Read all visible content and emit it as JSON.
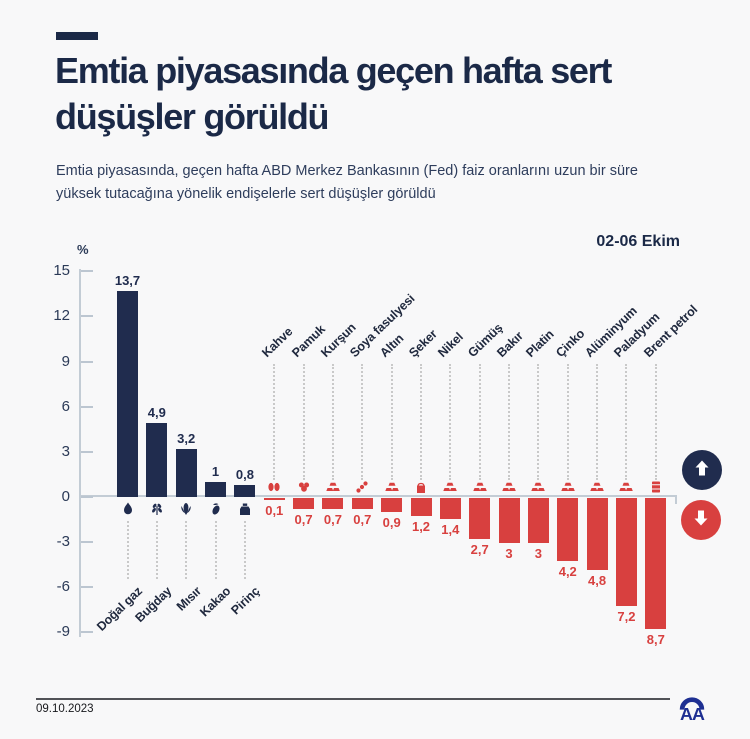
{
  "header": {
    "title_line1": "Emtia piyasasında geçen hafta sert",
    "title_line2": "düşüşler görüldü",
    "subtitle": "Emtia piyasasında, geçen hafta ABD Merkez Bankasının (Fed) faiz oranlarını uzun bir süre yüksek tutacağına yönelik endişelerle sert düşüşler görüldü",
    "period_label": "02-06 Ekim"
  },
  "chart_data": {
    "type": "bar",
    "title": "Emtia piyasasında geçen hafta sert düşüşler görüldü",
    "unit_label": "%",
    "ylabel": "%",
    "ylim": [
      -9,
      15
    ],
    "yticks": [
      15,
      12,
      9,
      6,
      3,
      0,
      -3,
      -6,
      -9
    ],
    "grid": "off",
    "legend_position": "right-of-baseline",
    "up_color": "#202c4e",
    "down_color": "#d8403f",
    "axis_color": "#c3ccd5",
    "series": [
      {
        "label": "Doğal gaz",
        "value": 13.7,
        "display": "13,7",
        "direction": "up",
        "icon": "flame-icon"
      },
      {
        "label": "Buğday",
        "value": 4.9,
        "display": "4,9",
        "direction": "up",
        "icon": "wheat-icon"
      },
      {
        "label": "Mısır",
        "value": 3.2,
        "display": "3,2",
        "direction": "up",
        "icon": "corn-icon"
      },
      {
        "label": "Kakao",
        "value": 1,
        "display": "1",
        "direction": "up",
        "icon": "cocoa-icon"
      },
      {
        "label": "Pirinç",
        "value": 0.8,
        "display": "0,8",
        "direction": "up",
        "icon": "rice-sack-icon"
      },
      {
        "label": "Kahve",
        "value": 0.1,
        "display": "0,1",
        "direction": "down",
        "icon": "coffee-beans-icon"
      },
      {
        "label": "Pamuk",
        "value": 0.7,
        "display": "0,7",
        "direction": "down",
        "icon": "cotton-icon"
      },
      {
        "label": "Kurşun",
        "value": 0.7,
        "display": "0,7",
        "direction": "down",
        "icon": "ingot-icon"
      },
      {
        "label": "Soya fasulyesi",
        "value": 0.7,
        "display": "0,7",
        "direction": "down",
        "icon": "soybean-icon"
      },
      {
        "label": "Altın",
        "value": 0.9,
        "display": "0,9",
        "direction": "down",
        "icon": "ingot-icon"
      },
      {
        "label": "Şeker",
        "value": 1.2,
        "display": "1,2",
        "direction": "down",
        "icon": "sugar-bag-icon"
      },
      {
        "label": "Nikel",
        "value": 1.4,
        "display": "1,4",
        "direction": "down",
        "icon": "ingot-icon"
      },
      {
        "label": "Gümüş",
        "value": 2.7,
        "display": "2,7",
        "direction": "down",
        "icon": "ingot-icon"
      },
      {
        "label": "Bakır",
        "value": 3,
        "display": "3",
        "direction": "down",
        "icon": "ingot-icon"
      },
      {
        "label": "Platin",
        "value": 3,
        "display": "3",
        "direction": "down",
        "icon": "ingot-icon"
      },
      {
        "label": "Çinko",
        "value": 4.2,
        "display": "4,2",
        "direction": "down",
        "icon": "ingot-icon"
      },
      {
        "label": "Alüminyum",
        "value": 4.8,
        "display": "4,8",
        "direction": "down",
        "icon": "ingot-icon"
      },
      {
        "label": "Paladyum",
        "value": 7.2,
        "display": "7,2",
        "direction": "down",
        "icon": "ingot-icon"
      },
      {
        "label": "Brent petrol",
        "value": 8.7,
        "display": "8,7",
        "direction": "down",
        "icon": "oil-barrel-icon"
      }
    ]
  },
  "legend": {
    "up_icon": "up-arrow-icon",
    "down_icon": "down-arrow-icon",
    "up_color": "#202c4e",
    "down_color": "#d8403f"
  },
  "footer": {
    "date": "09.10.2023",
    "logo_text": "AA",
    "logo_color": "#1e2f92"
  }
}
